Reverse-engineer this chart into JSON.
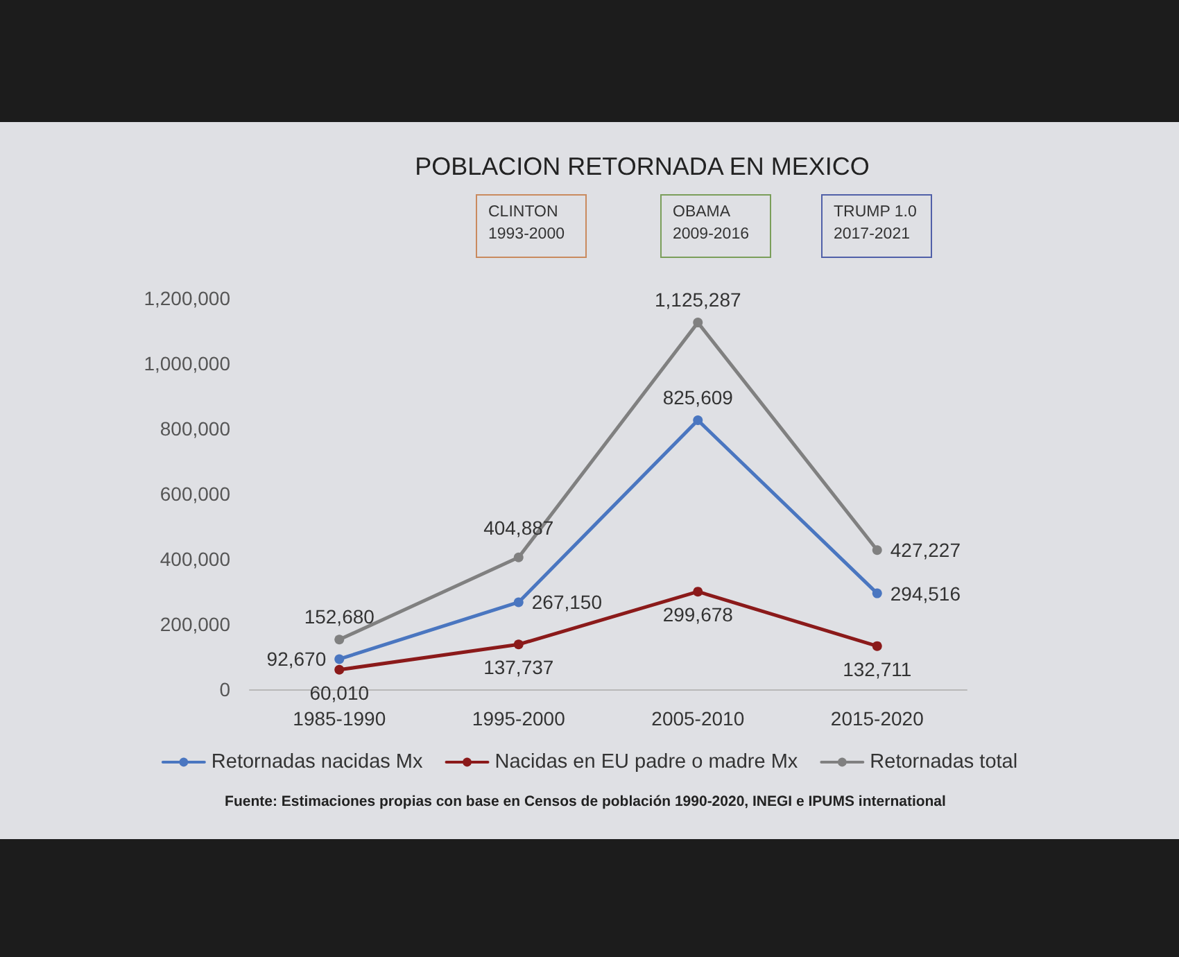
{
  "chart_data": {
    "type": "line",
    "title": "POBLACION RETORNADA EN MEXICO",
    "annotations": [
      "CLINTON\n1993-2000",
      "OBAMA\n2009-2016",
      "TRUMP 1.0\n2017-2021",
      "Fuente: Estimaciones propias con base en Censos de población 1990-2020, INEGI e IPUMS international"
    ],
    "categories": [
      "1985-1990",
      "1995-2000",
      "2005-2010",
      "2015-2020"
    ],
    "series": [
      {
        "name": "Retornadas nacidas Mx",
        "color": "#4a76c0",
        "values": [
          92670,
          267150,
          825609,
          294516
        ],
        "value_labels": [
          "92,670",
          "267,150",
          "825,609",
          "294,516"
        ]
      },
      {
        "name": "Nacidas en EU padre o madre Mx",
        "color": "#8b1a1a",
        "values": [
          60010,
          137737,
          299678,
          132711
        ],
        "value_labels": [
          "60,010",
          "137,737",
          "299,678",
          "132,711"
        ]
      },
      {
        "name": "Retornadas total",
        "color": "#808080",
        "values": [
          152680,
          404887,
          1125287,
          427227
        ],
        "value_labels": [
          "152,680",
          "404,887",
          "1,125,287",
          "427,227"
        ]
      }
    ],
    "ylim": [
      0,
      1200000
    ],
    "yticks": [
      0,
      {
        "value": 200000,
        "label": "200,000"
      },
      {
        "value": 400000,
        "label": "400,000"
      },
      {
        "value": 600000,
        "label": "600,000"
      },
      {
        "value": 800000,
        "label": "800,000"
      },
      {
        "value": 1000000,
        "label": "1,000,000"
      },
      {
        "value": 1200000,
        "label": "1,200,000"
      }
    ],
    "grid": false,
    "legend": "bottom",
    "marker": "circle",
    "line_style": "solid"
  }
}
